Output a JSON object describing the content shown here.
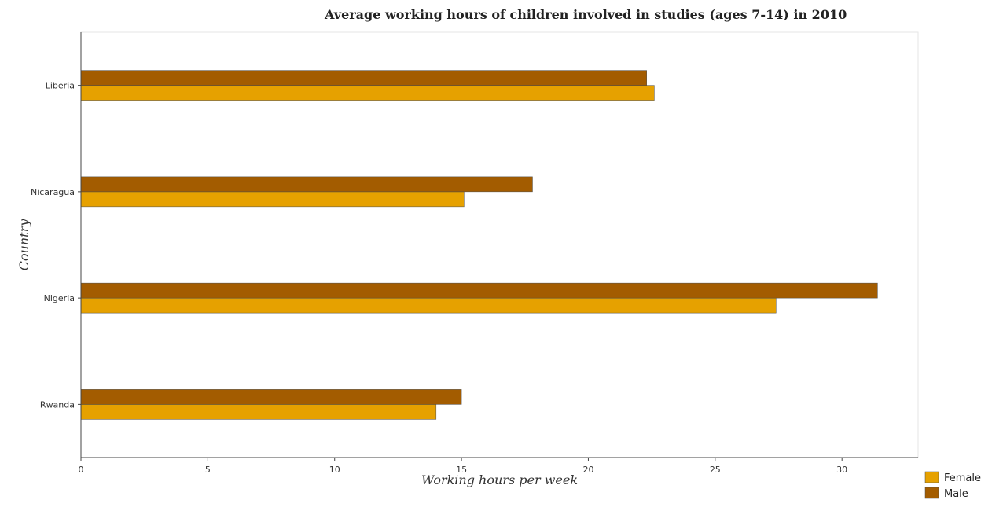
{
  "chart_data": {
    "type": "bar",
    "orientation": "horizontal",
    "title": "Average working hours of children involved in studies (ages 7-14) in 2010",
    "xlabel": "Working hours per week",
    "ylabel": "Country",
    "categories": [
      "Liberia",
      "Nicaragua",
      "Nigeria",
      "Rwanda"
    ],
    "xlim": [
      0,
      33
    ],
    "xticks": [
      0,
      5,
      10,
      15,
      20,
      25,
      30
    ],
    "series": [
      {
        "name": "Female",
        "color": "#e6a100",
        "values": [
          22.6,
          15.1,
          27.4,
          14.0
        ]
      },
      {
        "name": "Male",
        "color": "#a35c00",
        "values": [
          22.3,
          17.8,
          31.4,
          15.0
        ]
      }
    ],
    "grid": false,
    "legend_position": "bottom-right"
  }
}
